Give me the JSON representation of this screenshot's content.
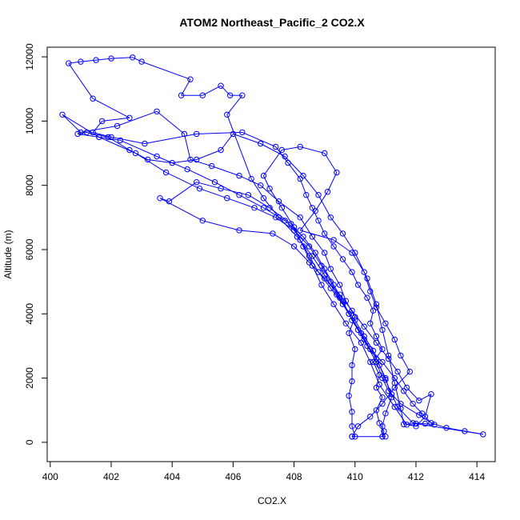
{
  "chart_data": {
    "type": "line",
    "title": "ATOM2 Northeast_Pacific_2 CO2.X",
    "xlabel": "CO2.X",
    "ylabel": "Altitude (m)",
    "xlim": [
      399.9,
      414.6
    ],
    "ylim": [
      -600,
      12300
    ],
    "xticks": [
      400,
      402,
      404,
      406,
      408,
      410,
      412,
      414
    ],
    "yticks": [
      0,
      2000,
      4000,
      6000,
      8000,
      10000,
      12000
    ],
    "xtick_labels": [
      "400",
      "402",
      "404",
      "406",
      "408",
      "410",
      "412",
      "414"
    ],
    "ytick_labels": [
      "0",
      "2000",
      "4000",
      "6000",
      "8000",
      "10000",
      "12000"
    ],
    "grid": false,
    "legend": "none",
    "series": [
      {
        "color": "#0000ff",
        "marker": "open-circle",
        "points": [
          [
            410.9,
            180
          ],
          [
            410.95,
            350
          ],
          [
            410.8,
            600
          ],
          [
            410.7,
            1000
          ],
          [
            410.9,
            1400
          ],
          [
            410.7,
            1700
          ],
          [
            410.8,
            2100
          ],
          [
            410.6,
            2500
          ],
          [
            410.9,
            2900
          ],
          [
            410.7,
            3300
          ],
          [
            410.5,
            3700
          ],
          [
            410.6,
            4100
          ],
          [
            410.4,
            4500
          ],
          [
            410.1,
            4900
          ],
          [
            409.9,
            5300
          ],
          [
            409.6,
            5700
          ],
          [
            409.3,
            6100
          ],
          [
            409.0,
            6500
          ],
          [
            408.8,
            6900
          ],
          [
            408.6,
            7300
          ],
          [
            408.4,
            7700
          ],
          [
            408.2,
            8200
          ],
          [
            407.8,
            8700
          ],
          [
            407.4,
            9200
          ],
          [
            406.3,
            9650
          ],
          [
            404.8,
            9600
          ],
          [
            403.1,
            9300
          ],
          [
            402.0,
            9500
          ],
          [
            401.4,
            9650
          ],
          [
            401.7,
            10000
          ],
          [
            402.6,
            10100
          ],
          [
            401.4,
            10700
          ],
          [
            400.6,
            11800
          ],
          [
            401.0,
            11850
          ],
          [
            401.5,
            11900
          ],
          [
            402.0,
            11950
          ],
          [
            402.7,
            11980
          ],
          [
            403.0,
            11850
          ],
          [
            404.6,
            11300
          ],
          [
            404.3,
            10800
          ],
          [
            405.0,
            10800
          ],
          [
            405.6,
            11100
          ],
          [
            405.9,
            10800
          ],
          [
            406.3,
            10800
          ],
          [
            405.8,
            10200
          ],
          [
            406.6,
            8200
          ],
          [
            407.0,
            7600
          ],
          [
            407.5,
            7000
          ],
          [
            408.1,
            6400
          ],
          [
            408.6,
            5800
          ],
          [
            409.0,
            5200
          ],
          [
            409.4,
            4600
          ],
          [
            409.8,
            4000
          ],
          [
            410.2,
            3400
          ],
          [
            410.5,
            2900
          ],
          [
            410.9,
            2500
          ],
          [
            411.3,
            2000
          ],
          [
            411.6,
            1600
          ],
          [
            411.9,
            1200
          ],
          [
            412.2,
            900
          ],
          [
            412.5,
            600
          ],
          [
            413.0,
            450
          ],
          [
            413.6,
            350
          ],
          [
            414.2,
            250
          ],
          [
            412.0,
            580
          ],
          [
            411.6,
            560
          ],
          [
            411.5,
            1050
          ],
          [
            411.3,
            1850
          ],
          [
            411.1,
            2700
          ],
          [
            410.9,
            3500
          ],
          [
            410.7,
            4300
          ],
          [
            410.4,
            5100
          ],
          [
            410.0,
            5900
          ],
          [
            409.6,
            6500
          ],
          [
            409.2,
            7000
          ],
          [
            408.8,
            7700
          ],
          [
            408.3,
            8300
          ],
          [
            407.7,
            8900
          ],
          [
            406.9,
            9300
          ],
          [
            406.0,
            9600
          ],
          [
            405.6,
            9100
          ],
          [
            404.8,
            8800
          ],
          [
            404.0,
            8700
          ],
          [
            403.2,
            8800
          ],
          [
            402.6,
            9100
          ],
          [
            401.9,
            9500
          ],
          [
            401.2,
            9650
          ],
          [
            400.9,
            9600
          ],
          [
            402.3,
            9400
          ],
          [
            403.5,
            8900
          ],
          [
            404.5,
            8500
          ],
          [
            405.4,
            8100
          ],
          [
            406.2,
            7700
          ],
          [
            407.0,
            7300
          ],
          [
            407.7,
            6900
          ],
          [
            408.3,
            6400
          ],
          [
            408.7,
            5900
          ],
          [
            409.0,
            5400
          ],
          [
            409.3,
            4900
          ],
          [
            409.6,
            4400
          ],
          [
            409.9,
            3800
          ],
          [
            410.3,
            3200
          ],
          [
            410.7,
            2600
          ],
          [
            411.0,
            2000
          ],
          [
            411.2,
            1400
          ],
          [
            411.0,
            900
          ],
          [
            410.9,
            500
          ],
          [
            410.9,
            180
          ],
          [
            411.0,
            180
          ],
          [
            409.9,
            180
          ],
          [
            410.0,
            180
          ],
          [
            409.9,
            500
          ],
          [
            409.9,
            950
          ],
          [
            409.8,
            1450
          ],
          [
            409.9,
            1900
          ],
          [
            409.9,
            2400
          ],
          [
            410.0,
            2900
          ],
          [
            409.8,
            3400
          ],
          [
            410.0,
            3900
          ],
          [
            409.7,
            4400
          ],
          [
            409.5,
            4900
          ],
          [
            409.2,
            5400
          ],
          [
            409.0,
            5900
          ],
          [
            408.6,
            6400
          ],
          [
            408.2,
            7000
          ],
          [
            407.5,
            7500
          ],
          [
            406.9,
            8000
          ],
          [
            406.2,
            8300
          ],
          [
            405.3,
            8600
          ],
          [
            404.6,
            8800
          ],
          [
            404.4,
            9600
          ],
          [
            403.5,
            10300
          ],
          [
            402.2,
            9850
          ],
          [
            401.0,
            9650
          ],
          [
            400.4,
            10200
          ],
          [
            401.6,
            9500
          ],
          [
            402.8,
            9000
          ],
          [
            403.8,
            8400
          ],
          [
            404.9,
            7900
          ],
          [
            405.8,
            7600
          ],
          [
            406.7,
            7300
          ],
          [
            407.4,
            7000
          ],
          [
            408.0,
            6600
          ],
          [
            408.5,
            6100
          ],
          [
            408.9,
            5500
          ],
          [
            409.2,
            5000
          ],
          [
            409.5,
            4500
          ],
          [
            409.8,
            4000
          ],
          [
            410.1,
            3500
          ],
          [
            410.4,
            3000
          ],
          [
            410.7,
            2500
          ],
          [
            410.9,
            2000
          ],
          [
            411.1,
            1600
          ],
          [
            411.5,
            1200
          ],
          [
            412.1,
            850
          ],
          [
            412.6,
            550
          ],
          [
            412.3,
            580
          ],
          [
            411.9,
            600
          ],
          [
            411.4,
            1100
          ],
          [
            411.2,
            1500
          ],
          [
            411.0,
            1950
          ],
          [
            410.8,
            2400
          ],
          [
            410.6,
            2850
          ],
          [
            410.3,
            3300
          ],
          [
            410.0,
            3800
          ],
          [
            409.6,
            4300
          ],
          [
            409.2,
            4800
          ],
          [
            408.8,
            5300
          ],
          [
            408.5,
            5800
          ],
          [
            408.2,
            6300
          ],
          [
            407.9,
            6800
          ],
          [
            407.2,
            7300
          ],
          [
            406.5,
            7700
          ],
          [
            405.6,
            7900
          ],
          [
            404.8,
            8100
          ],
          [
            403.9,
            7500
          ],
          [
            403.6,
            7600
          ],
          [
            405.0,
            6900
          ],
          [
            406.2,
            6600
          ],
          [
            407.3,
            6500
          ],
          [
            408.0,
            6100
          ],
          [
            408.5,
            5600
          ],
          [
            409.0,
            5100
          ],
          [
            409.5,
            4600
          ],
          [
            409.9,
            4100
          ],
          [
            410.3,
            3600
          ],
          [
            410.7,
            3100
          ],
          [
            411.1,
            2600
          ],
          [
            411.4,
            2200
          ],
          [
            411.7,
            1700
          ],
          [
            412.1,
            1300
          ],
          [
            412.5,
            1500
          ],
          [
            412.3,
            800
          ],
          [
            412.0,
            500
          ],
          [
            411.7,
            550
          ],
          [
            411.3,
            1100
          ],
          [
            410.8,
            1800
          ],
          [
            410.5,
            2500
          ],
          [
            410.2,
            3100
          ],
          [
            409.7,
            3700
          ],
          [
            409.3,
            4300
          ],
          [
            408.9,
            4900
          ],
          [
            408.6,
            5500
          ],
          [
            408.3,
            6100
          ],
          [
            408.0,
            6700
          ],
          [
            407.6,
            7300
          ],
          [
            407.2,
            7900
          ],
          [
            407.0,
            8300
          ],
          [
            407.6,
            9100
          ],
          [
            408.2,
            9200
          ],
          [
            409.0,
            9000
          ],
          [
            409.4,
            8400
          ],
          [
            409.1,
            7800
          ],
          [
            408.7,
            7200
          ],
          [
            408.2,
            6600
          ],
          [
            409.3,
            6300
          ],
          [
            409.9,
            5900
          ],
          [
            410.3,
            5300
          ],
          [
            410.5,
            4700
          ],
          [
            410.7,
            4200
          ],
          [
            411.0,
            3700
          ],
          [
            411.3,
            3200
          ],
          [
            411.5,
            2700
          ],
          [
            411.8,
            2200
          ],
          [
            411.3,
            1700
          ],
          [
            410.9,
            1200
          ],
          [
            410.5,
            800
          ],
          [
            410.1,
            500
          ],
          [
            409.9,
            180
          ]
        ]
      }
    ]
  }
}
